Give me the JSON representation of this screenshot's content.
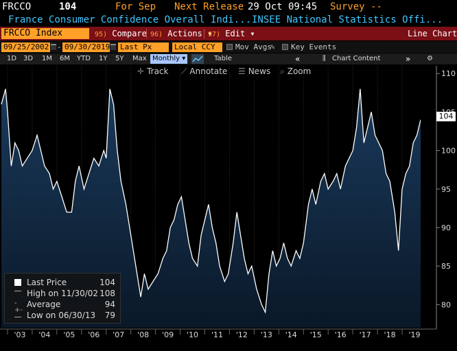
{
  "header": {
    "ticker": "FRCCO",
    "value": "104",
    "for_label": "For Sep",
    "next_release_label": "Next Release",
    "next_release_value": "29 Oct 09:45",
    "survey_label": "Survey --"
  },
  "subtitle": {
    "name": "France Consumer Confidence Overall Indi...",
    "source": "INSEE National Statistics Offi..."
  },
  "toolbar": {
    "security": "FRCCO Index",
    "compare_num": "95)",
    "compare_label": "Compare",
    "actions_num": "96)",
    "actions_label": "Actions ▾",
    "edit_num": "97)",
    "edit_label": "Edit ▾",
    "chart_type": "Line Chart"
  },
  "range": {
    "start": "09/25/2002",
    "end": "09/30/2019",
    "field": "Last Px",
    "currency": "Local CCY",
    "mov_avgs": "Mov Avgs",
    "key_events": "Key Events"
  },
  "periods": [
    "1D",
    "3D",
    "1M",
    "6M",
    "YTD",
    "1Y",
    "5Y",
    "Max"
  ],
  "period_selected": "Monthly ▾",
  "table_label": "Table",
  "chart_content_label": "Chart Content",
  "tools": {
    "track": "Track",
    "annotate": "Annotate",
    "news": "News",
    "zoom": "Zoom"
  },
  "legend": {
    "last_price_label": "Last Price",
    "last_price_value": "104",
    "high_label": "High on 11/30/02",
    "high_value": "108",
    "average_label": "Average",
    "average_value": "94",
    "low_label": "Low on 06/30/13",
    "low_value": "79"
  },
  "colors": {
    "line": "#ffffff",
    "area_top": "#1a3a5c",
    "area_bottom": "#0a1828",
    "accent_orange": "#ffa028",
    "toolbar_red": "#7a0f16",
    "subtitle_blue": "#40c8ff"
  },
  "chart_data": {
    "type": "area",
    "title": "",
    "xlabel": "",
    "ylabel": "",
    "ylim": [
      77,
      111
    ],
    "yticks": [
      80,
      85,
      90,
      95,
      100,
      105,
      110
    ],
    "xticks": [
      "'03",
      "'04",
      "'05",
      "'06",
      "'07",
      "'08",
      "'09",
      "'10",
      "'11",
      "'12",
      "'13",
      "'14",
      "'15",
      "'16",
      "'17",
      "'18",
      "'19"
    ],
    "last_value_label": "104",
    "series": [
      {
        "values": [
          [
            2002.75,
            106
          ],
          [
            2002.92,
            108
          ],
          [
            2003.0,
            105
          ],
          [
            2003.15,
            98
          ],
          [
            2003.3,
            101
          ],
          [
            2003.45,
            100
          ],
          [
            2003.6,
            98
          ],
          [
            2003.8,
            99
          ],
          [
            2004.0,
            100
          ],
          [
            2004.2,
            102
          ],
          [
            2004.35,
            100
          ],
          [
            2004.5,
            98
          ],
          [
            2004.7,
            97
          ],
          [
            2004.85,
            95
          ],
          [
            2005.0,
            96
          ],
          [
            2005.2,
            94
          ],
          [
            2005.4,
            92
          ],
          [
            2005.6,
            92
          ],
          [
            2005.75,
            96
          ],
          [
            2005.9,
            98
          ],
          [
            2006.1,
            95
          ],
          [
            2006.3,
            97
          ],
          [
            2006.5,
            99
          ],
          [
            2006.7,
            98
          ],
          [
            2006.9,
            100
          ],
          [
            2007.0,
            99
          ],
          [
            2007.15,
            108
          ],
          [
            2007.3,
            106
          ],
          [
            2007.45,
            100
          ],
          [
            2007.6,
            96
          ],
          [
            2007.8,
            93
          ],
          [
            2008.0,
            89
          ],
          [
            2008.2,
            85
          ],
          [
            2008.4,
            81
          ],
          [
            2008.55,
            84
          ],
          [
            2008.7,
            82
          ],
          [
            2008.9,
            83
          ],
          [
            2009.1,
            84
          ],
          [
            2009.3,
            86
          ],
          [
            2009.45,
            87
          ],
          [
            2009.6,
            90
          ],
          [
            2009.75,
            91
          ],
          [
            2009.9,
            93
          ],
          [
            2010.05,
            94
          ],
          [
            2010.2,
            91
          ],
          [
            2010.35,
            88
          ],
          [
            2010.5,
            86
          ],
          [
            2010.7,
            85
          ],
          [
            2010.85,
            89
          ],
          [
            2011.0,
            91
          ],
          [
            2011.15,
            93
          ],
          [
            2011.3,
            90
          ],
          [
            2011.45,
            88
          ],
          [
            2011.6,
            85
          ],
          [
            2011.8,
            83
          ],
          [
            2011.95,
            84
          ],
          [
            2012.15,
            88
          ],
          [
            2012.3,
            92
          ],
          [
            2012.45,
            89
          ],
          [
            2012.6,
            86
          ],
          [
            2012.75,
            84
          ],
          [
            2012.9,
            85
          ],
          [
            2013.1,
            82
          ],
          [
            2013.3,
            80
          ],
          [
            2013.45,
            79
          ],
          [
            2013.6,
            84
          ],
          [
            2013.75,
            87
          ],
          [
            2013.9,
            85
          ],
          [
            2014.05,
            86
          ],
          [
            2014.2,
            88
          ],
          [
            2014.35,
            86
          ],
          [
            2014.5,
            85
          ],
          [
            2014.7,
            87
          ],
          [
            2014.85,
            86
          ],
          [
            2015.0,
            88
          ],
          [
            2015.2,
            93
          ],
          [
            2015.35,
            95
          ],
          [
            2015.5,
            93
          ],
          [
            2015.7,
            96
          ],
          [
            2015.85,
            97
          ],
          [
            2016.0,
            95
          ],
          [
            2016.2,
            96
          ],
          [
            2016.35,
            97
          ],
          [
            2016.5,
            95
          ],
          [
            2016.7,
            98
          ],
          [
            2016.85,
            99
          ],
          [
            2017.0,
            100
          ],
          [
            2017.15,
            103
          ],
          [
            2017.3,
            108
          ],
          [
            2017.45,
            101
          ],
          [
            2017.6,
            103
          ],
          [
            2017.75,
            105
          ],
          [
            2017.9,
            102
          ],
          [
            2018.05,
            101
          ],
          [
            2018.2,
            100
          ],
          [
            2018.35,
            97
          ],
          [
            2018.5,
            96
          ],
          [
            2018.7,
            92
          ],
          [
            2018.85,
            87
          ],
          [
            2019.0,
            95
          ],
          [
            2019.15,
            97
          ],
          [
            2019.3,
            98
          ],
          [
            2019.45,
            101
          ],
          [
            2019.6,
            102
          ],
          [
            2019.75,
            104
          ]
        ]
      }
    ]
  }
}
